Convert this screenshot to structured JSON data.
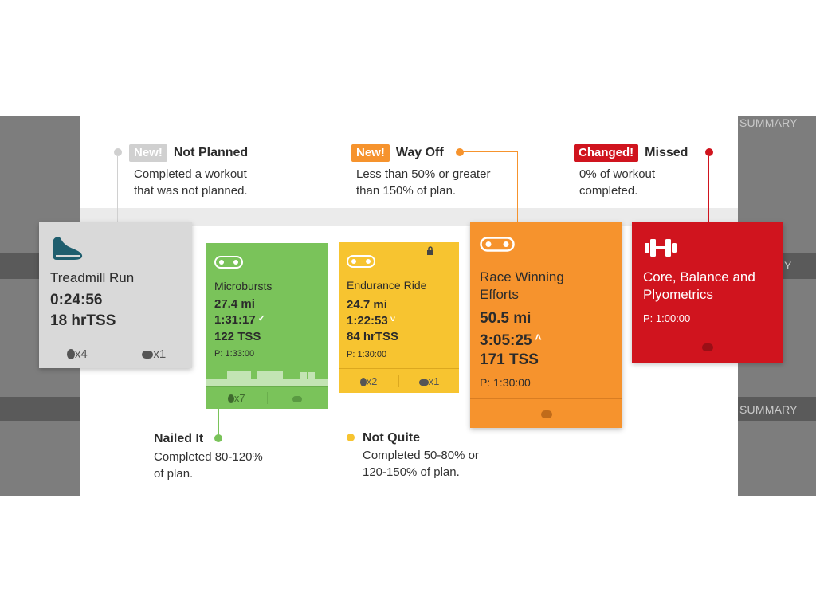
{
  "background": {
    "summary_top": "SUMMARY",
    "summary_bottom": "SUMMARY",
    "row_label_fragment": "Y"
  },
  "legend": {
    "not_planned": {
      "badge": "New!",
      "title": "Not Planned",
      "desc1": "Completed a workout",
      "desc2": "that was not planned."
    },
    "way_off": {
      "badge": "New!",
      "title": "Way Off",
      "desc1": "Less than 50% or greater",
      "desc2": "than 150% of plan."
    },
    "missed": {
      "badge": "Changed!",
      "title": "Missed",
      "desc1": "0% of workout",
      "desc2": "completed."
    },
    "nailed_it": {
      "title": "Nailed It",
      "desc1": "Completed 80-120%",
      "desc2": "of plan."
    },
    "not_quite": {
      "title": "Not Quite",
      "desc1": "Completed 50-80% or",
      "desc2": "120-150% of plan."
    }
  },
  "cards": {
    "treadmill": {
      "icon": "running-shoe-icon",
      "name": "Treadmill Run",
      "duration": "0:24:56",
      "tss": "18 hrTSS",
      "medals": "x4",
      "comments": "x1"
    },
    "microbursts": {
      "icon": "bike-chain-icon",
      "name": "Microbursts",
      "distance": "27.4 mi",
      "duration": "1:31:17",
      "tss": "122 TSS",
      "planned": "P: 1:33:00",
      "medals": "x7"
    },
    "endurance": {
      "icon": "bike-chain-icon",
      "name": "Endurance Ride",
      "distance": "24.7 mi",
      "duration": "1:22:53",
      "tss": "84 hrTSS",
      "planned": "P: 1:30:00",
      "medals": "x2",
      "comments": "x1"
    },
    "race": {
      "icon": "bike-chain-icon",
      "name1": "Race Winning",
      "name2": "Efforts",
      "distance": "50.5 mi",
      "duration": "3:05:25",
      "tss": "171 TSS",
      "planned": "P: 1:30:00"
    },
    "core": {
      "icon": "dumbbell-icon",
      "name1": "Core, Balance and",
      "name2": "Plyometrics",
      "planned": "P: 1:00:00"
    }
  },
  "colors": {
    "gray": "#d9d9d9",
    "green": "#7ac35a",
    "yellow": "#f7c430",
    "orange": "#f6932d",
    "red": "#d0141e",
    "legend_gray": "#d0d0d0",
    "legend_orange": "#f6932d",
    "legend_red": "#d0141e"
  }
}
